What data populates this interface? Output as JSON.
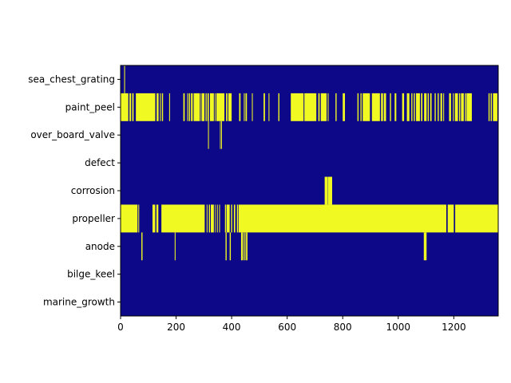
{
  "chart_data": {
    "type": "heatmap",
    "title": "",
    "xlabel": "",
    "ylabel": "",
    "xlim": [
      0,
      1360
    ],
    "xticks": [
      0,
      200,
      400,
      600,
      800,
      1000,
      1200
    ],
    "categories": [
      "sea_chest_grating",
      "paint_peel",
      "over_board_valve",
      "defect",
      "corrosion",
      "propeller",
      "anode",
      "bilge_keel",
      "marine_growth"
    ],
    "colors": {
      "absent": "#0d0887",
      "present": "#f0f921"
    },
    "series": [
      {
        "name": "sea_chest_grating",
        "intervals": [
          [
            13,
            16
          ]
        ]
      },
      {
        "name": "paint_peel",
        "intervals": [
          [
            0,
            28
          ],
          [
            32,
            38
          ],
          [
            42,
            47
          ],
          [
            55,
            125
          ],
          [
            130,
            137
          ],
          [
            142,
            145
          ],
          [
            149,
            153
          ],
          [
            175,
            178
          ],
          [
            226,
            231
          ],
          [
            240,
            243
          ],
          [
            246,
            250
          ],
          [
            253,
            258
          ],
          [
            260,
            262
          ],
          [
            264,
            285
          ],
          [
            287,
            289
          ],
          [
            292,
            302
          ],
          [
            306,
            310
          ],
          [
            313,
            318
          ],
          [
            322,
            336
          ],
          [
            339,
            342
          ],
          [
            345,
            374
          ],
          [
            380,
            385
          ],
          [
            388,
            400
          ],
          [
            427,
            432
          ],
          [
            444,
            447
          ],
          [
            450,
            455
          ],
          [
            473,
            476
          ],
          [
            515,
            520
          ],
          [
            533,
            536
          ],
          [
            568,
            572
          ],
          [
            613,
            659
          ],
          [
            662,
            705
          ],
          [
            712,
            717
          ],
          [
            721,
            742
          ],
          [
            746,
            749
          ],
          [
            774,
            778
          ],
          [
            800,
            808
          ],
          [
            853,
            857
          ],
          [
            864,
            868
          ],
          [
            872,
            898
          ],
          [
            905,
            934
          ],
          [
            938,
            945
          ],
          [
            948,
            956
          ],
          [
            970,
            974
          ],
          [
            987,
            993
          ],
          [
            1014,
            1021
          ],
          [
            1031,
            1040
          ],
          [
            1047,
            1051
          ],
          [
            1056,
            1060
          ],
          [
            1064,
            1078
          ],
          [
            1082,
            1087
          ],
          [
            1093,
            1102
          ],
          [
            1106,
            1110
          ],
          [
            1115,
            1120
          ],
          [
            1131,
            1135
          ],
          [
            1142,
            1146
          ],
          [
            1152,
            1158
          ],
          [
            1162,
            1165
          ],
          [
            1183,
            1190
          ],
          [
            1197,
            1200
          ],
          [
            1204,
            1215
          ],
          [
            1219,
            1223
          ],
          [
            1226,
            1236
          ],
          [
            1240,
            1244
          ],
          [
            1246,
            1265
          ],
          [
            1325,
            1329
          ],
          [
            1333,
            1337
          ],
          [
            1341,
            1357
          ]
        ]
      },
      {
        "name": "over_board_valve",
        "intervals": [
          [
            315,
            318
          ],
          [
            358,
            360
          ],
          [
            362,
            365
          ]
        ]
      },
      {
        "name": "defect",
        "intervals": []
      },
      {
        "name": "corrosion",
        "intervals": [
          [
            735,
            745
          ],
          [
            746,
            762
          ]
        ]
      },
      {
        "name": "propeller",
        "intervals": [
          [
            0,
            61
          ],
          [
            64,
            67
          ],
          [
            115,
            125
          ],
          [
            129,
            136
          ],
          [
            147,
            303
          ],
          [
            310,
            313
          ],
          [
            318,
            322
          ],
          [
            325,
            336
          ],
          [
            340,
            342
          ],
          [
            347,
            350
          ],
          [
            355,
            358
          ],
          [
            376,
            380
          ],
          [
            382,
            393
          ],
          [
            398,
            402
          ],
          [
            408,
            413
          ],
          [
            419,
            423
          ],
          [
            425,
            1173
          ],
          [
            1178,
            1200
          ],
          [
            1205,
            1360
          ]
        ]
      },
      {
        "name": "anode",
        "intervals": [
          [
            75,
            79
          ],
          [
            195,
            198
          ],
          [
            378,
            382
          ],
          [
            393,
            397
          ],
          [
            434,
            440
          ],
          [
            442,
            445
          ],
          [
            447,
            450
          ],
          [
            452,
            457
          ],
          [
            1092,
            1102
          ]
        ]
      },
      {
        "name": "bilge_keel",
        "intervals": []
      },
      {
        "name": "marine_growth",
        "intervals": []
      }
    ]
  }
}
